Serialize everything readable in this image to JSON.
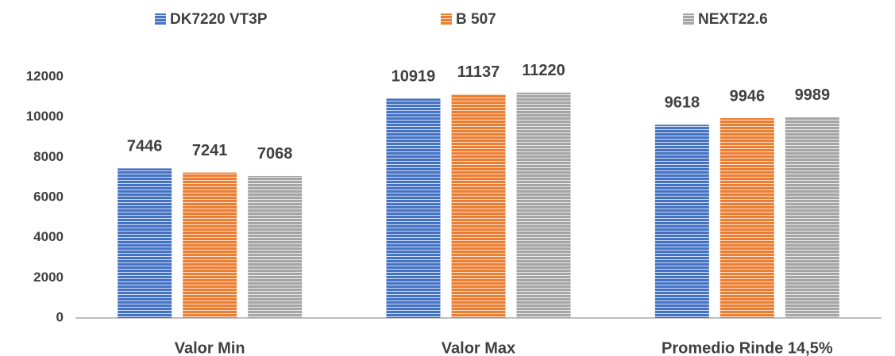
{
  "chart_data": {
    "type": "bar",
    "categories": [
      "Valor Min",
      "Valor Max",
      "Promedio Rinde 14,5%"
    ],
    "series": [
      {
        "name": "DK7220 VT3P",
        "color": "#4472c4",
        "values": [
          7446,
          10919,
          9618
        ]
      },
      {
        "name": "B 507",
        "color": "#ed7d31",
        "values": [
          7241,
          11137,
          9946
        ]
      },
      {
        "name": "NEXT22.6",
        "color": "#a5a5a5",
        "values": [
          7068,
          11220,
          9989
        ]
      }
    ],
    "ylim": [
      0,
      12000
    ],
    "yticks": [
      0,
      2000,
      4000,
      6000,
      8000,
      10000,
      12000
    ],
    "grid": false,
    "legend": "top"
  }
}
